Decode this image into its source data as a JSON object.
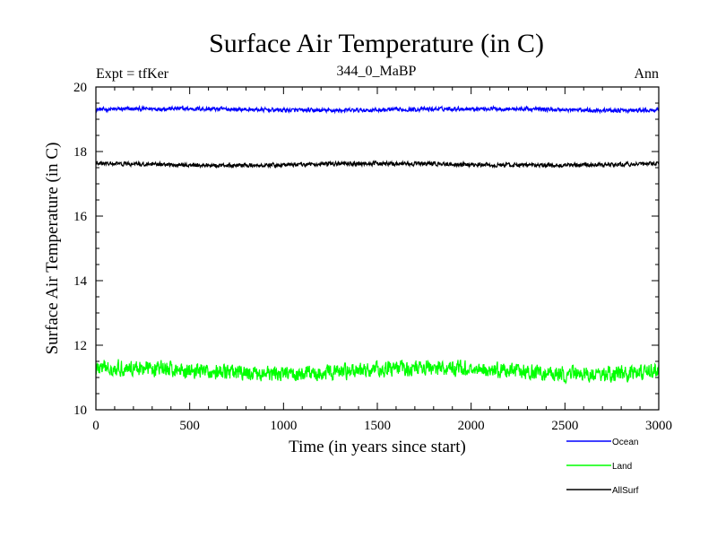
{
  "chart_data": {
    "type": "line",
    "title": "Surface Air Temperature (in C)",
    "subtitle": "344_0_MaBP",
    "left_note": "Expt = tfKer",
    "right_note": "Ann",
    "xlabel": "Time (in years since start)",
    "ylabel": "Surface Air Temperature (in C)",
    "xlim": [
      0,
      3000
    ],
    "ylim": [
      10,
      20
    ],
    "x_ticks": [
      0,
      500,
      1000,
      1500,
      2000,
      2500,
      3000
    ],
    "y_ticks": [
      10,
      12,
      14,
      16,
      18,
      20
    ],
    "grid": false,
    "legend_position": "bottom-right",
    "series": [
      {
        "name": "Ocean",
        "color": "#0000ff",
        "mean": 19.3,
        "range": [
          19.2,
          19.45
        ]
      },
      {
        "name": "Land",
        "color": "#00ff00",
        "mean": 11.2,
        "range": [
          10.65,
          11.6
        ]
      },
      {
        "name": "AllSurf",
        "color": "#000000",
        "mean": 17.6,
        "range": [
          17.5,
          17.75
        ]
      }
    ]
  }
}
